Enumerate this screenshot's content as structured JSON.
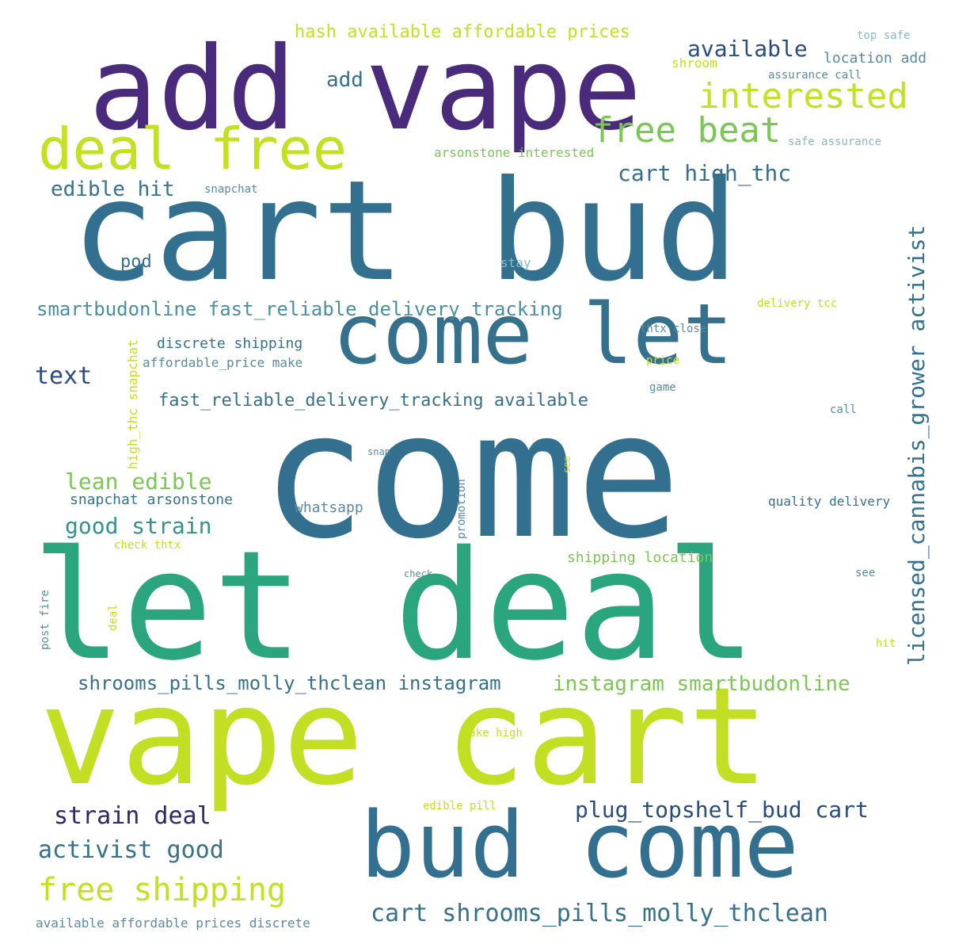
{
  "words": [
    {
      "text": "add vape",
      "color": "#4a2a7a"
    },
    {
      "text": "cart bud",
      "color": "#33708f"
    },
    {
      "text": "come let",
      "color": "#35708d"
    },
    {
      "text": "come",
      "color": "#33708f"
    },
    {
      "text": "let deal",
      "color": "#2ba57e"
    },
    {
      "text": "vape cart",
      "color": "#c2df23"
    },
    {
      "text": "bud come",
      "color": "#33708f"
    },
    {
      "text": "deal free",
      "color": "#c4e022"
    },
    {
      "text": "interested",
      "color": "#c4e022"
    },
    {
      "text": "free beat",
      "color": "#7ac754"
    },
    {
      "text": "available",
      "color": "#2a4c7e"
    },
    {
      "text": "add",
      "color": "#35718d"
    },
    {
      "text": "cart high_thc",
      "color": "#35718d"
    },
    {
      "text": "edible hit",
      "color": "#35718d"
    },
    {
      "text": "hash available affordable prices",
      "color": "#c4e022"
    },
    {
      "text": "top safe",
      "color": "#8ab8c8"
    },
    {
      "text": "location add",
      "color": "#5a8aa0"
    },
    {
      "text": "shroom",
      "color": "#c4e022"
    },
    {
      "text": "assurance call",
      "color": "#5a8aa0"
    },
    {
      "text": "arsonstone interested",
      "color": "#7ac754"
    },
    {
      "text": "safe assurance",
      "color": "#8ab8c8"
    },
    {
      "text": "snapchat",
      "color": "#5a8aa0"
    },
    {
      "text": "pod",
      "color": "#35718d"
    },
    {
      "text": "stay",
      "color": "#8ab8c8"
    },
    {
      "text": "smartbudonline fast_reliable_delivery_tracking",
      "color": "#4a8fa0"
    },
    {
      "text": "delivery tcc",
      "color": "#c4e022"
    },
    {
      "text": "thtx close",
      "color": "#5a8aa0"
    },
    {
      "text": "discrete shipping",
      "color": "#35718d"
    },
    {
      "text": "affordable_price make",
      "color": "#5a8aa0"
    },
    {
      "text": "text",
      "color": "#2a4c7e"
    },
    {
      "text": "price",
      "color": "#c4e022"
    },
    {
      "text": "game",
      "color": "#5a8aa0"
    },
    {
      "text": "fast_reliable_delivery_tracking available",
      "color": "#35718d"
    },
    {
      "text": "call",
      "color": "#5a8aa0"
    },
    {
      "text": "licensed_cannabis_grower activist",
      "color": "#35718d"
    },
    {
      "text": "high_thc snapchat",
      "color": "#c4e022"
    },
    {
      "text": "lean edible",
      "color": "#7ac754"
    },
    {
      "text": "snapchat arsonstone",
      "color": "#35718d"
    },
    {
      "text": "whatsapp",
      "color": "#5a8aa0"
    },
    {
      "text": "promotion",
      "color": "#5a8aa0"
    },
    {
      "text": "snap",
      "color": "#5a8aa0"
    },
    {
      "text": "see",
      "color": "#c4e022"
    },
    {
      "text": "quality delivery",
      "color": "#35718d"
    },
    {
      "text": "good strain",
      "color": "#35918d"
    },
    {
      "text": "check thtx",
      "color": "#c4e022"
    },
    {
      "text": "shipping location",
      "color": "#7ac754"
    },
    {
      "text": "check",
      "color": "#5a8aa0"
    },
    {
      "text": "see",
      "color": "#5a8aa0"
    },
    {
      "text": "post fire",
      "color": "#5a8aa0"
    },
    {
      "text": "deal",
      "color": "#c4e022"
    },
    {
      "text": "hit",
      "color": "#c4e022"
    },
    {
      "text": "shrooms_pills_molly_thclean instagram",
      "color": "#35718d"
    },
    {
      "text": "instagram smartbudonline",
      "color": "#7ac754"
    },
    {
      "text": "make high",
      "color": "#c4e022"
    },
    {
      "text": "edible pill",
      "color": "#c4e022"
    },
    {
      "text": "strain deal",
      "color": "#2a2a6a"
    },
    {
      "text": "plug_topshelf_bud cart",
      "color": "#2a4c7e"
    },
    {
      "text": "activist good",
      "color": "#35718d"
    },
    {
      "text": "free shipping",
      "color": "#c4e022"
    },
    {
      "text": "cart shrooms_pills_molly_thclean",
      "color": "#35718d"
    },
    {
      "text": "available affordable prices discrete",
      "color": "#5a8aa0"
    }
  ]
}
